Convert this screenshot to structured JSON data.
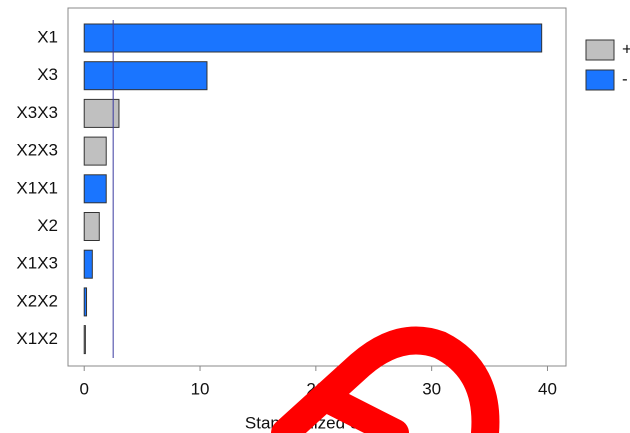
{
  "chart_data": {
    "type": "bar",
    "orientation": "horizontal",
    "x_label": "Standardized effect",
    "categories": [
      "X1",
      "X3",
      "X3X3",
      "X2X3",
      "X1X1",
      "X2",
      "X1X3",
      "X2X2",
      "X1X2"
    ],
    "series": [
      {
        "name": "+",
        "color": "#c0c0c0",
        "values": [
          null,
          null,
          3.0,
          1.9,
          null,
          1.3,
          null,
          null,
          0.1
        ]
      },
      {
        "name": "-",
        "color": "#1a75ff",
        "values": [
          39.5,
          10.6,
          null,
          null,
          1.9,
          null,
          0.7,
          0.2,
          null
        ]
      }
    ],
    "threshold": 2.5,
    "xlim": [
      -1.4,
      41.6
    ],
    "xticks": [
      0,
      10,
      20,
      30,
      40
    ]
  }
}
